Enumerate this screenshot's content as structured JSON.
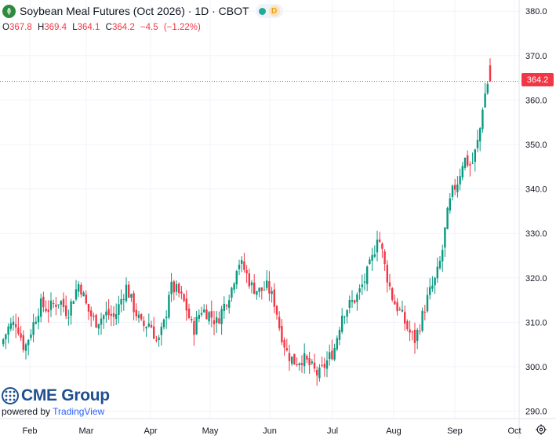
{
  "header": {
    "title": "Soybean Meal Futures (Oct 2026) · 1D · CBOT",
    "status_badge": "D"
  },
  "ohlc": {
    "open_label": "O",
    "open": "367.8",
    "high_label": "H",
    "high": "369.4",
    "low_label": "L",
    "low": "364.1",
    "close_label": "C",
    "close": "364.2",
    "change": "−4.5",
    "change_pct": "(−1.22%)"
  },
  "last_price": "364.2",
  "brand": {
    "name": "CME Group",
    "powered_by": "powered by",
    "tradingview": "TradingView"
  },
  "colors": {
    "up": "#089981",
    "down": "#f23645",
    "grid": "#f0f3fa",
    "brand": "#1f4f8f"
  },
  "icons": {
    "settings": "gear-icon",
    "symbol": "soybean-leaf-icon"
  },
  "chart_data": {
    "type": "candlestick",
    "title": "",
    "y_axis": {
      "position": "right",
      "range": [
        288,
        382
      ],
      "ticks": [
        290,
        300,
        310,
        320,
        330,
        340,
        350,
        360,
        370,
        380
      ]
    },
    "x_axis": {
      "ticks": [
        "Feb",
        "Mar",
        "Apr",
        "May",
        "Jun",
        "Jul",
        "Aug",
        "Sep",
        "Oct"
      ]
    },
    "grid": true,
    "last_price_line": 364.2,
    "close_path": [
      [
        0,
        305
      ],
      [
        10,
        309
      ],
      [
        20,
        310
      ],
      [
        30,
        304
      ],
      [
        40,
        309
      ],
      [
        50,
        314
      ],
      [
        60,
        313
      ],
      [
        75,
        315
      ],
      [
        85,
        312
      ],
      [
        95,
        317
      ],
      [
        100,
        319
      ],
      [
        110,
        313
      ],
      [
        120,
        310
      ],
      [
        135,
        312
      ],
      [
        145,
        311
      ],
      [
        155,
        316
      ],
      [
        160,
        318
      ],
      [
        170,
        313
      ],
      [
        180,
        309
      ],
      [
        190,
        310
      ],
      [
        200,
        305
      ],
      [
        210,
        311
      ],
      [
        215,
        318
      ],
      [
        225,
        317
      ],
      [
        235,
        314
      ],
      [
        245,
        308
      ],
      [
        255,
        313
      ],
      [
        265,
        312
      ],
      [
        275,
        310
      ],
      [
        285,
        314
      ],
      [
        295,
        318
      ],
      [
        302,
        324
      ],
      [
        310,
        322
      ],
      [
        320,
        318
      ],
      [
        330,
        317
      ],
      [
        340,
        318
      ],
      [
        350,
        314
      ],
      [
        355,
        309
      ],
      [
        365,
        303
      ],
      [
        375,
        301
      ],
      [
        385,
        302
      ],
      [
        395,
        300
      ],
      [
        405,
        298
      ],
      [
        415,
        301
      ],
      [
        425,
        304
      ],
      [
        435,
        312
      ],
      [
        445,
        314
      ],
      [
        455,
        316
      ],
      [
        465,
        320
      ],
      [
        475,
        325
      ],
      [
        480,
        330
      ],
      [
        485,
        327
      ],
      [
        490,
        322
      ],
      [
        500,
        315
      ],
      [
        510,
        312
      ],
      [
        520,
        308
      ],
      [
        528,
        306
      ],
      [
        535,
        310
      ],
      [
        545,
        316
      ],
      [
        555,
        320
      ],
      [
        562,
        325
      ],
      [
        568,
        333
      ],
      [
        575,
        339
      ],
      [
        583,
        342
      ],
      [
        590,
        347
      ],
      [
        600,
        345
      ],
      [
        610,
        352
      ],
      [
        615,
        360
      ],
      [
        620,
        363
      ],
      [
        624,
        368.7
      ],
      [
        627,
        364.2
      ]
    ]
  }
}
